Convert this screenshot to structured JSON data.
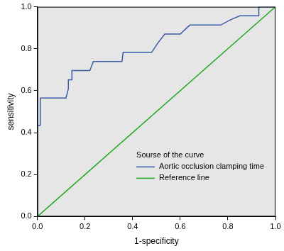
{
  "chart_data": {
    "type": "line",
    "xlabel": "1-specificity",
    "ylabel": "sensitivity",
    "legend_title": "Sourse of the curve",
    "legend": "lower right",
    "grid": false,
    "xlim": [
      0,
      1
    ],
    "ylim": [
      0,
      1
    ],
    "xticks": [
      {
        "value": 0,
        "label": "0.0"
      },
      0.2,
      0.4,
      0.6,
      0.8,
      {
        "value": 1,
        "label": "1.0"
      }
    ],
    "yticks": [
      {
        "value": 0,
        "label": "0.0"
      },
      0.2,
      0.4,
      0.6,
      0.8,
      {
        "value": 1,
        "label": "1.0"
      }
    ],
    "series": [
      {
        "name": "Aortic occlusion clamping time",
        "color": "#3b5ba5",
        "line_style": "solid",
        "x": [
          0,
          0,
          0.012,
          0.012,
          0.12,
          0.13,
          0.13,
          0.145,
          0.145,
          0.22,
          0.235,
          0.355,
          0.36,
          0.48,
          0.505,
          0.535,
          0.6,
          0.64,
          0.77,
          0.805,
          0.85,
          0.93,
          0.93,
          1.0
        ],
        "values": [
          0,
          0.435,
          0.435,
          0.565,
          0.565,
          0.609,
          0.652,
          0.652,
          0.696,
          0.696,
          0.739,
          0.739,
          0.783,
          0.783,
          0.826,
          0.87,
          0.87,
          0.913,
          0.913,
          0.935,
          0.957,
          0.957,
          1.0,
          1.0
        ]
      },
      {
        "name": "Reference line",
        "color": "#22aa22",
        "line_style": "solid",
        "x": [
          0,
          1
        ],
        "values": [
          0,
          1
        ]
      }
    ]
  }
}
